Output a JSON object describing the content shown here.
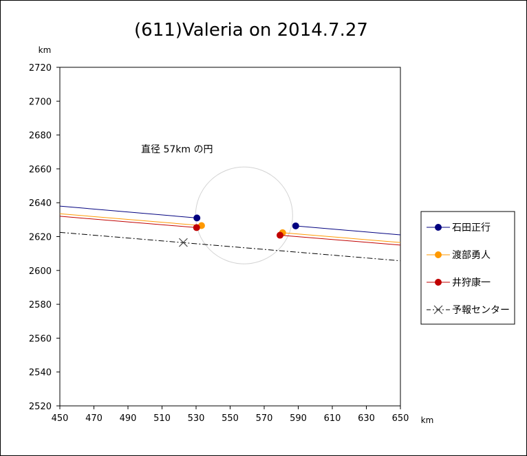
{
  "chart_data": {
    "type": "line",
    "title": "(611)Valeria on 2014.7.27",
    "xlabel": "km",
    "ylabel": "km",
    "xlim": [
      450,
      650
    ],
    "ylim": [
      2520,
      2720
    ],
    "x_ticks": [
      450,
      470,
      490,
      510,
      530,
      550,
      570,
      590,
      610,
      630,
      650
    ],
    "y_ticks": [
      2520,
      2540,
      2560,
      2580,
      2600,
      2620,
      2640,
      2660,
      2680,
      2700,
      2720
    ],
    "grid": false,
    "legend_position": "right",
    "annotation": "直径 57km の円",
    "circle": {
      "center": [
        558.2,
        2632.5
      ],
      "diameter": 57,
      "color": "#d3d3d3"
    },
    "series": [
      {
        "name": "石田正行",
        "color": "#00007f",
        "marker": "circle",
        "lines": [
          {
            "x": [
              450,
              530.5
            ],
            "y": [
              2638,
              2631
            ]
          },
          {
            "x": [
              588.5,
              650
            ],
            "y": [
              2626.3,
              2621
            ]
          }
        ],
        "points": [
          {
            "x": 530.5,
            "y": 2631
          },
          {
            "x": 588.5,
            "y": 2626.3
          }
        ]
      },
      {
        "name": "渡部勇人",
        "color": "#ff9900",
        "marker": "circle",
        "lines": [
          {
            "x": [
              450,
              533.2
            ],
            "y": [
              2633.5,
              2626.5
            ]
          },
          {
            "x": [
              580.8,
              650
            ],
            "y": [
              2622.3,
              2616.5
            ]
          }
        ],
        "points": [
          {
            "x": 533.2,
            "y": 2626.5
          },
          {
            "x": 580.8,
            "y": 2622.3
          }
        ]
      },
      {
        "name": "井狩康一",
        "color": "#c00000",
        "marker": "circle",
        "lines": [
          {
            "x": [
              450,
              530.3
            ],
            "y": [
              2632,
              2625.3
            ]
          },
          {
            "x": [
              579.3,
              650
            ],
            "y": [
              2620.8,
              2615
            ]
          }
        ],
        "points": [
          {
            "x": 530.3,
            "y": 2625.3
          },
          {
            "x": 579.3,
            "y": 2620.8
          }
        ]
      },
      {
        "name": "予報センター",
        "color": "#000000",
        "marker": "x",
        "dash": "dash-dot",
        "lines": [
          {
            "x": [
              450,
              650
            ],
            "y": [
              2622.5,
              2605.7
            ]
          }
        ],
        "points": [
          {
            "x": 522.5,
            "y": 2616.5
          }
        ]
      }
    ]
  }
}
